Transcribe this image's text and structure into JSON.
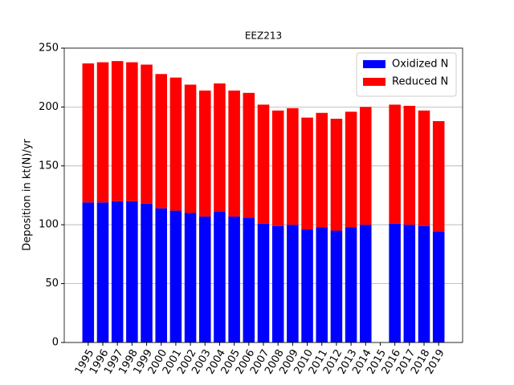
{
  "chart_data": {
    "type": "bar",
    "stacked": true,
    "title": "EEZ213",
    "y_label": "Deposition in kt(N)/yr",
    "categories": [
      "1995",
      "1996",
      "1997",
      "1998",
      "1999",
      "2000",
      "2001",
      "2002",
      "2003",
      "2004",
      "2005",
      "2006",
      "2007",
      "2008",
      "2009",
      "2010",
      "2011",
      "2012",
      "2013",
      "2014",
      "2015",
      "2016",
      "2017",
      "2018",
      "2019"
    ],
    "series": [
      {
        "name": "Oxidized N",
        "color": "#0000ff",
        "values": [
          119,
          119,
          120,
          120,
          118,
          114,
          112,
          110,
          107,
          111,
          107,
          106,
          101,
          99,
          100,
          96,
          98,
          95,
          98,
          100,
          null,
          101,
          100,
          99,
          94
        ]
      },
      {
        "name": "Reduced N",
        "color": "#ff0000",
        "values": [
          118,
          119,
          119,
          118,
          118,
          114,
          113,
          109,
          107,
          109,
          107,
          106,
          101,
          98,
          99,
          95,
          97,
          95,
          98,
          100,
          null,
          101,
          101,
          98,
          94
        ]
      }
    ],
    "ylim": [
      0,
      250
    ],
    "yticks": [
      0,
      50,
      100,
      150,
      200,
      250
    ],
    "grid": true,
    "legend": "upper right"
  }
}
